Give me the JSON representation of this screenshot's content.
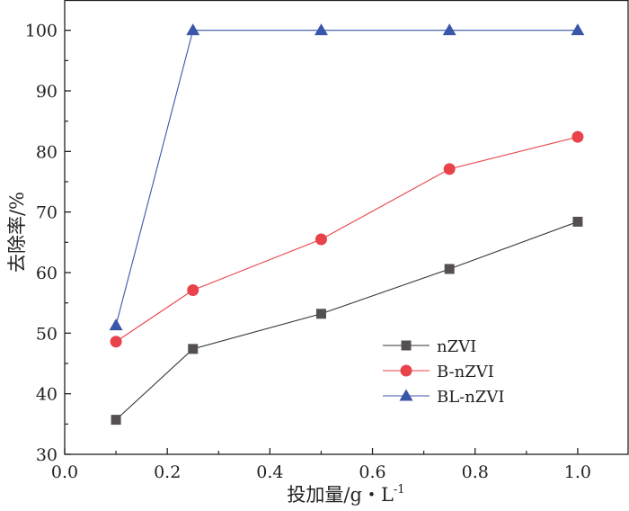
{
  "chart_data": {
    "type": "line",
    "title": "",
    "xlabel": "投加量/g・L",
    "xlabel_superscript": "-1",
    "ylabel": "去除率/%",
    "xlim": [
      0.0,
      1.1
    ],
    "ylim": [
      30,
      105
    ],
    "x_ticks": [
      "0.0",
      "0.2",
      "0.4",
      "0.6",
      "0.8",
      "1.0"
    ],
    "x_tick_values": [
      0.0,
      0.2,
      0.4,
      0.6,
      0.8,
      1.0
    ],
    "y_ticks": [
      "30",
      "40",
      "50",
      "60",
      "70",
      "80",
      "90",
      "100"
    ],
    "y_tick_values": [
      30,
      40,
      50,
      60,
      70,
      80,
      90,
      100
    ],
    "grid": false,
    "legend_position": "bottom-right",
    "series": [
      {
        "name": "nZVI",
        "color": "#333333",
        "marker_color": "#555050",
        "marker": "square",
        "x": [
          0.1,
          0.25,
          0.5,
          0.75,
          1.0
        ],
        "values": [
          35.7,
          47.4,
          53.2,
          60.6,
          68.4
        ]
      },
      {
        "name": "B-nZVI",
        "color": "#e8424a",
        "marker_color": "#e8424a",
        "marker": "circle",
        "x": [
          0.1,
          0.25,
          0.5,
          0.75,
          1.0
        ],
        "values": [
          48.6,
          57.1,
          65.5,
          77.1,
          82.4
        ]
      },
      {
        "name": "BL-nZVI",
        "color": "#3a56a8",
        "marker_color": "#3a56a8",
        "marker": "triangle",
        "x": [
          0.1,
          0.25,
          0.5,
          0.75,
          1.0
        ],
        "values": [
          51.3,
          100,
          100,
          100,
          100
        ]
      }
    ]
  }
}
